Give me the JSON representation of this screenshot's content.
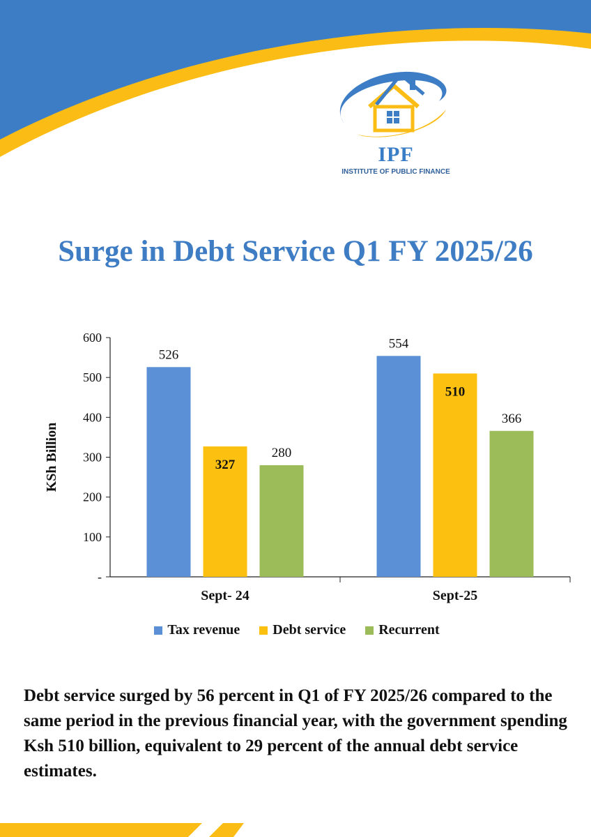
{
  "colors": {
    "brand_blue": "#3d7dc6",
    "brand_yellow": "#fbbd15",
    "title_blue": "#3e7cc4"
  },
  "logo": {
    "icon": "house-ring-icon",
    "name": "IPF",
    "subtitle": "INSTITUTE OF PUBLIC FINANCE"
  },
  "title": "Surge in Debt Service Q1 FY 2025/26",
  "chart_data": {
    "type": "bar",
    "categories": [
      "Sept- 24",
      "Sept-25"
    ],
    "series": [
      {
        "name": "Tax revenue",
        "values": [
          526,
          554
        ],
        "color": "#5b8fd6"
      },
      {
        "name": "Debt service",
        "values": [
          327,
          510
        ],
        "color": "#fcc010"
      },
      {
        "name": "Recurrent",
        "values": [
          280,
          366
        ],
        "color": "#9cbb59"
      }
    ],
    "ylabel": "KSh Billion",
    "ylim": [
      0,
      600
    ],
    "yticks": [
      0,
      100,
      200,
      300,
      400,
      500,
      600
    ],
    "ytick_labels": [
      "-",
      "100",
      "200",
      "300",
      "400",
      "500",
      "600"
    ],
    "legend_position": "bottom",
    "grid": false
  },
  "body_text": "Debt service surged by 56 percent in Q1 of FY 2025/26 compared to the same period in the previous financial year, with the government spending Ksh 510 billion, equivalent to 29 percent of the annual debt service estimates."
}
